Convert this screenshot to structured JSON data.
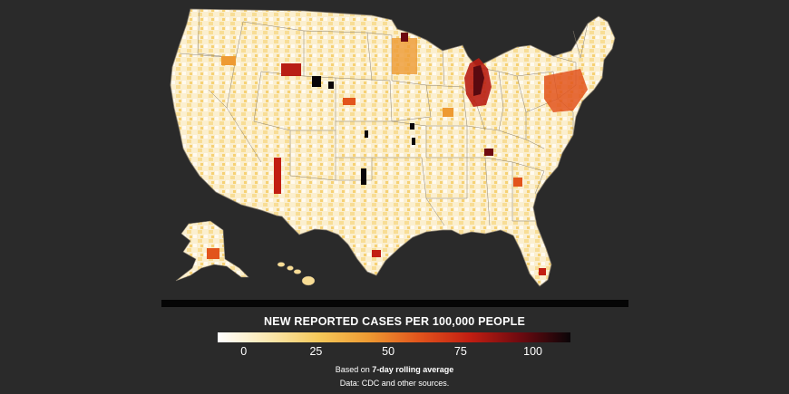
{
  "legend": {
    "title": "NEW REPORTED CASES PER 100,000 PEOPLE",
    "ticks": [
      "0",
      "25",
      "50",
      "75",
      "100"
    ],
    "tick_values": [
      0,
      25,
      50,
      75,
      100
    ],
    "scale_min": -9,
    "scale_max": 113,
    "colors": [
      "#ffffff",
      "#fbe8b0",
      "#f5c95a",
      "#ee9a32",
      "#e2541c",
      "#c21e12",
      "#6e0a10",
      "#0a0508"
    ]
  },
  "note": {
    "prefix": "Based on ",
    "emphasis": "7-day rolling average"
  },
  "source": "Data: CDC and other sources.",
  "map": {
    "base_color": "#fbefcf",
    "border_color": "#8a8070",
    "hotspots": [
      {
        "region": "michigan",
        "value": 95
      },
      {
        "region": "northeast-corridor",
        "value": 60
      },
      {
        "region": "minnesota",
        "value": 45
      },
      {
        "region": "montana",
        "value": 70
      },
      {
        "region": "new-mexico",
        "value": 80
      },
      {
        "region": "dakotas",
        "value": 100
      }
    ]
  }
}
